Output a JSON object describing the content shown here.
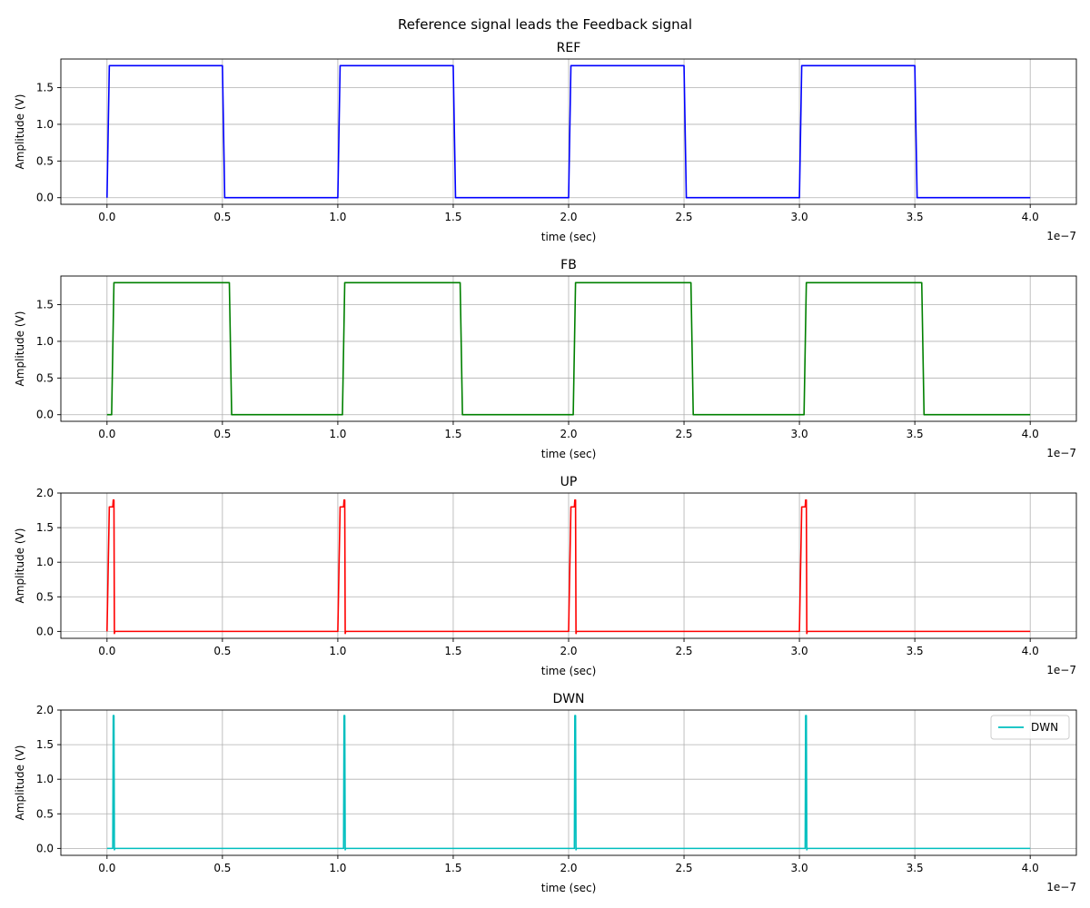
{
  "suptitle": "Reference signal leads the Feedback signal",
  "chart_data": [
    {
      "type": "line",
      "title": "REF",
      "xlabel": "time (sec)",
      "ylabel": "Amplitude (V)",
      "x_exponent_label": "1e−7",
      "xlim": [
        -0.2,
        4.2
      ],
      "ylim": [
        -0.09,
        1.89
      ],
      "xticks": [
        0.0,
        0.5,
        1.0,
        1.5,
        2.0,
        2.5,
        3.0,
        3.5,
        4.0
      ],
      "xtick_labels": [
        "0.0",
        "0.5",
        "1.0",
        "1.5",
        "2.0",
        "2.5",
        "3.0",
        "3.5",
        "4.0"
      ],
      "yticks": [
        0.0,
        0.5,
        1.0,
        1.5
      ],
      "ytick_labels": [
        "0.0",
        "0.5",
        "1.0",
        "1.5"
      ],
      "grid": true,
      "legend": null,
      "series": [
        {
          "color": "#0000ff",
          "x": [
            0.0,
            0.01,
            0.5,
            0.51,
            1.0,
            1.01,
            1.5,
            1.51,
            2.0,
            2.01,
            2.5,
            2.51,
            3.0,
            3.01,
            3.5,
            3.51,
            4.0
          ],
          "y": [
            0.0,
            1.8,
            1.8,
            0.0,
            0.0,
            1.8,
            1.8,
            0.0,
            0.0,
            1.8,
            1.8,
            0.0,
            0.0,
            1.8,
            1.8,
            0.0,
            0.0
          ]
        }
      ]
    },
    {
      "type": "line",
      "title": "FB",
      "xlabel": "time (sec)",
      "ylabel": "Amplitude (V)",
      "x_exponent_label": "1e−7",
      "xlim": [
        -0.2,
        4.2
      ],
      "ylim": [
        -0.09,
        1.89
      ],
      "xticks": [
        0.0,
        0.5,
        1.0,
        1.5,
        2.0,
        2.5,
        3.0,
        3.5,
        4.0
      ],
      "xtick_labels": [
        "0.0",
        "0.5",
        "1.0",
        "1.5",
        "2.0",
        "2.5",
        "3.0",
        "3.5",
        "4.0"
      ],
      "yticks": [
        0.0,
        0.5,
        1.0,
        1.5
      ],
      "ytick_labels": [
        "0.0",
        "0.5",
        "1.0",
        "1.5"
      ],
      "grid": true,
      "legend": null,
      "series": [
        {
          "color": "#008000",
          "x": [
            0.0,
            0.02,
            0.03,
            0.53,
            0.54,
            1.02,
            1.03,
            1.53,
            1.54,
            2.02,
            2.03,
            2.53,
            2.54,
            3.02,
            3.03,
            3.53,
            3.54,
            4.0
          ],
          "y": [
            0.0,
            0.0,
            1.8,
            1.8,
            0.0,
            0.0,
            1.8,
            1.8,
            0.0,
            0.0,
            1.8,
            1.8,
            0.0,
            0.0,
            1.8,
            1.8,
            0.0,
            0.0
          ]
        }
      ]
    },
    {
      "type": "line",
      "title": "UP",
      "xlabel": "time (sec)",
      "ylabel": "Amplitude (V)",
      "x_exponent_label": "1e−7",
      "xlim": [
        -0.2,
        4.2
      ],
      "ylim": [
        -0.1,
        2.0
      ],
      "xticks": [
        0.0,
        0.5,
        1.0,
        1.5,
        2.0,
        2.5,
        3.0,
        3.5,
        4.0
      ],
      "xtick_labels": [
        "0.0",
        "0.5",
        "1.0",
        "1.5",
        "2.0",
        "2.5",
        "3.0",
        "3.5",
        "4.0"
      ],
      "yticks": [
        0.0,
        0.5,
        1.0,
        1.5,
        2.0
      ],
      "ytick_labels": [
        "0.0",
        "0.5",
        "1.0",
        "1.5",
        "2.0"
      ],
      "grid": true,
      "legend": null,
      "series": [
        {
          "color": "#ff0000",
          "x": [
            0.0,
            0.01,
            0.02,
            0.025,
            0.027,
            0.03,
            0.032,
            0.034,
            1.0,
            1.01,
            1.02,
            1.025,
            1.027,
            1.03,
            1.032,
            1.034,
            2.0,
            2.01,
            2.02,
            2.025,
            2.027,
            2.03,
            2.032,
            2.034,
            3.0,
            3.01,
            3.02,
            3.025,
            3.027,
            3.03,
            3.032,
            3.034,
            4.0
          ],
          "y": [
            0.0,
            1.8,
            1.8,
            1.8,
            1.9,
            1.9,
            -0.03,
            0.0,
            0.0,
            1.8,
            1.8,
            1.8,
            1.9,
            1.9,
            -0.03,
            0.0,
            0.0,
            1.8,
            1.8,
            1.8,
            1.9,
            1.9,
            -0.03,
            0.0,
            0.0,
            1.8,
            1.8,
            1.8,
            1.9,
            1.9,
            -0.03,
            0.0,
            0.0
          ]
        }
      ]
    },
    {
      "type": "line",
      "title": "DWN",
      "xlabel": "time (sec)",
      "ylabel": "Amplitude (V)",
      "x_exponent_label": "1e−7",
      "xlim": [
        -0.2,
        4.2
      ],
      "ylim": [
        -0.1,
        2.0
      ],
      "xticks": [
        0.0,
        0.5,
        1.0,
        1.5,
        2.0,
        2.5,
        3.0,
        3.5,
        4.0
      ],
      "xtick_labels": [
        "0.0",
        "0.5",
        "1.0",
        "1.5",
        "2.0",
        "2.5",
        "3.0",
        "3.5",
        "4.0"
      ],
      "yticks": [
        0.0,
        0.5,
        1.0,
        1.5,
        2.0
      ],
      "ytick_labels": [
        "0.0",
        "0.5",
        "1.0",
        "1.5",
        "2.0"
      ],
      "grid": true,
      "legend": "upper right",
      "series": [
        {
          "name": "DWN",
          "color": "#00bfbf",
          "x": [
            0.0,
            0.025,
            0.027,
            0.03,
            0.032,
            0.034,
            1.025,
            1.027,
            1.03,
            1.032,
            1.034,
            2.025,
            2.027,
            2.03,
            2.032,
            2.034,
            3.025,
            3.027,
            3.03,
            3.032,
            3.034,
            4.0
          ],
          "y": [
            0.0,
            0.0,
            1.92,
            1.92,
            -0.02,
            0.0,
            0.0,
            1.92,
            1.92,
            -0.02,
            0.0,
            0.0,
            1.92,
            1.92,
            -0.02,
            0.0,
            0.0,
            1.92,
            1.92,
            -0.02,
            0.0,
            0.0
          ]
        }
      ]
    }
  ]
}
